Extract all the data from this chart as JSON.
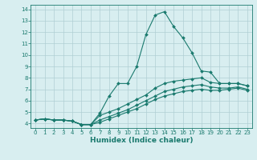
{
  "xlabel": "Humidex (Indice chaleur)",
  "bg_color": "#d8eef0",
  "grid_color": "#b0cfd4",
  "line_color": "#1a7a6e",
  "xlim": [
    -0.5,
    23.5
  ],
  "ylim": [
    3.6,
    14.4
  ],
  "xticks": [
    0,
    1,
    2,
    3,
    4,
    5,
    6,
    7,
    8,
    9,
    10,
    11,
    12,
    13,
    14,
    15,
    16,
    17,
    18,
    19,
    20,
    21,
    22,
    23
  ],
  "yticks": [
    4,
    5,
    6,
    7,
    8,
    9,
    10,
    11,
    12,
    13,
    14
  ],
  "series": [
    [
      4.3,
      4.4,
      4.3,
      4.3,
      4.2,
      3.9,
      3.9,
      4.9,
      6.4,
      7.5,
      7.5,
      9.0,
      11.8,
      13.5,
      13.8,
      12.5,
      11.5,
      10.2,
      8.6,
      8.5,
      7.5,
      7.5,
      7.5,
      7.3
    ],
    [
      4.3,
      4.4,
      4.3,
      4.3,
      4.2,
      3.9,
      3.9,
      4.7,
      5.0,
      5.3,
      5.7,
      6.1,
      6.5,
      7.1,
      7.5,
      7.7,
      7.8,
      7.9,
      8.0,
      7.6,
      7.5,
      7.5,
      7.5,
      7.3
    ],
    [
      4.3,
      4.4,
      4.3,
      4.3,
      4.2,
      3.9,
      3.9,
      4.3,
      4.6,
      4.9,
      5.2,
      5.6,
      6.0,
      6.4,
      6.8,
      7.0,
      7.2,
      7.3,
      7.4,
      7.2,
      7.1,
      7.1,
      7.2,
      7.0
    ],
    [
      4.3,
      4.4,
      4.3,
      4.3,
      4.2,
      3.9,
      3.9,
      4.1,
      4.4,
      4.7,
      5.0,
      5.3,
      5.7,
      6.1,
      6.4,
      6.6,
      6.8,
      6.9,
      7.0,
      6.9,
      6.9,
      7.0,
      7.1,
      6.9
    ]
  ],
  "tick_fontsize": 5.0,
  "xlabel_fontsize": 6.5,
  "marker_size": 2.0,
  "linewidth": 0.8
}
